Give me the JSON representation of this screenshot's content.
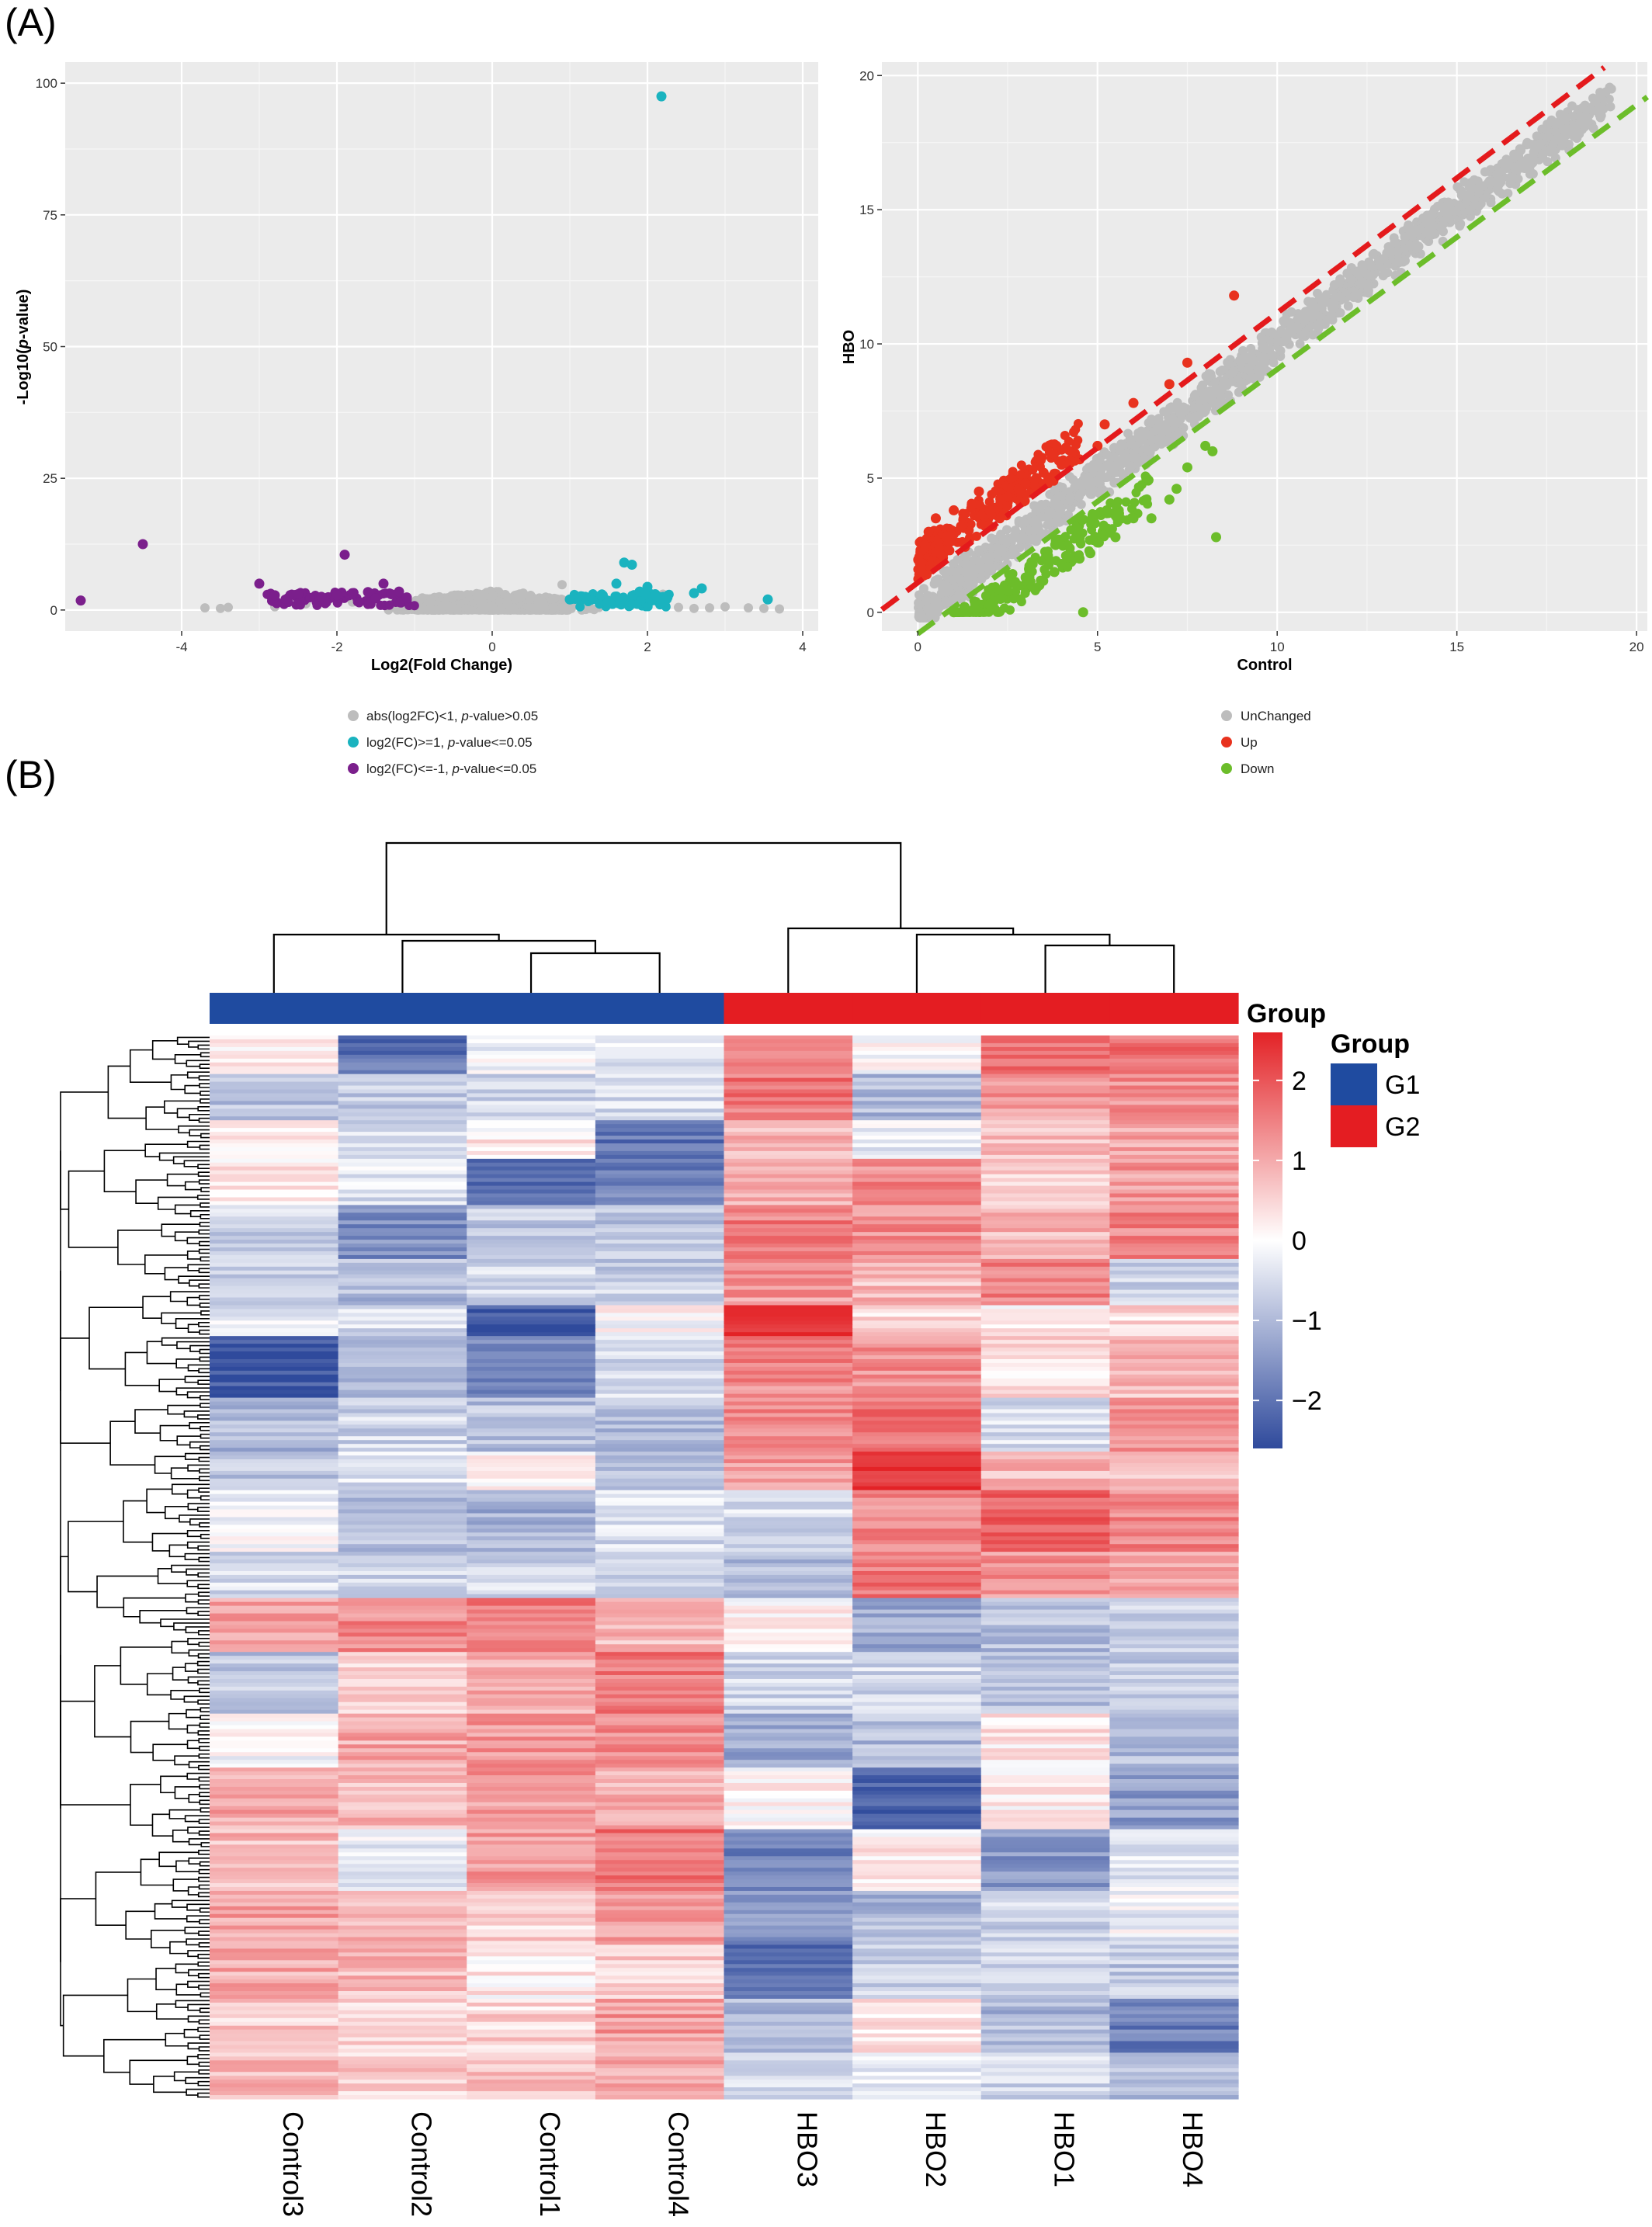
{
  "panel_labels": [
    "(A)",
    "(B)"
  ],
  "colors": {
    "panel_bg": "#ebebeb",
    "unchanged": "#bdbdbd",
    "volcano_up": "#1ab3bf",
    "volcano_down": "#7b1f8c",
    "scatter_up": "#e8321e",
    "scatter_down": "#6cbd2a",
    "line_up": "#e41a1c",
    "line_down": "#6cbd2a",
    "heat_low": "#2f4a9c",
    "heat_mid": "#ffffff",
    "heat_high": "#e32226",
    "group_g1": "#1f4ba0",
    "group_g2": "#e41d22"
  },
  "chart_data": [
    {
      "type": "scatter",
      "title": "",
      "xlabel": "Log2(Fold Change)",
      "ylabel": "-Log10(p-value)",
      "xlim": [
        -5.5,
        4.2
      ],
      "ylim": [
        -4,
        104
      ],
      "xticks": [
        -4,
        -2,
        0,
        2,
        4
      ],
      "xtick_labels": [
        "-4",
        "-2",
        "0",
        "2",
        "4"
      ],
      "yticks": [
        0,
        25,
        50,
        75,
        100
      ],
      "ytick_labels": [
        "0",
        "25",
        "50",
        "75",
        "100"
      ],
      "grid": true,
      "legend_position": "bottom",
      "legend": [
        {
          "label": "abs(log2FC)<1, p-value>0.05",
          "color": "#bdbdbd"
        },
        {
          "label": "log2(FC)>=1, p-value<=0.05",
          "color": "#1ab3bf"
        },
        {
          "label": "log2(FC)<=-1, p-value<=0.05",
          "color": "#7b1f8c"
        }
      ],
      "series": [
        {
          "name": "abs(log2FC)<1, p-value>0.05",
          "points": [
            [
              -3.7,
              0.4
            ],
            [
              -3.5,
              0.3
            ],
            [
              -3.4,
              0.5
            ],
            [
              -2.8,
              0.6
            ],
            [
              -2.4,
              1.2
            ],
            [
              -1.8,
              1.5
            ],
            [
              -1.2,
              1.8
            ],
            [
              -0.9,
              2.3
            ],
            [
              -0.6,
              1.6
            ],
            [
              -0.4,
              2.8
            ],
            [
              -0.2,
              3.1
            ],
            [
              0,
              2.5
            ],
            [
              0.2,
              2.4
            ],
            [
              0.4,
              3.2
            ],
            [
              0.6,
              1.8
            ],
            [
              0.8,
              2.2
            ],
            [
              0.9,
              4.8
            ],
            [
              1.2,
              0.9
            ],
            [
              2.2,
              3.0
            ],
            [
              2.4,
              0.5
            ],
            [
              2.6,
              0.3
            ],
            [
              2.8,
              0.4
            ],
            [
              3.0,
              0.6
            ],
            [
              3.3,
              0.4
            ],
            [
              3.5,
              0.3
            ],
            [
              3.7,
              0.2
            ]
          ]
        },
        {
          "name": "log2(FC)>=1, p-value<=0.05",
          "points": [
            [
              1.0,
              2.0
            ],
            [
              1.2,
              2.5
            ],
            [
              1.4,
              2.8
            ],
            [
              1.6,
              5.0
            ],
            [
              1.7,
              9.0
            ],
            [
              1.8,
              8.6
            ],
            [
              1.9,
              3.5
            ],
            [
              2.0,
              4.4
            ],
            [
              2.1,
              3.0
            ],
            [
              2.2,
              2.3
            ],
            [
              2.18,
              97.5
            ],
            [
              2.6,
              3.2
            ],
            [
              2.7,
              4.1
            ],
            [
              3.55,
              2.0
            ]
          ]
        },
        {
          "name": "log2(FC)<=-1, p-value<=0.05",
          "points": [
            [
              -5.3,
              1.8
            ],
            [
              -4.5,
              12.5
            ],
            [
              -3.0,
              5.0
            ],
            [
              -2.8,
              2.8
            ],
            [
              -2.5,
              3.0
            ],
            [
              -2.2,
              2.5
            ],
            [
              -2.0,
              2.8
            ],
            [
              -1.9,
              10.5
            ],
            [
              -1.8,
              3.2
            ],
            [
              -1.6,
              3.4
            ],
            [
              -1.5,
              2.2
            ],
            [
              -1.4,
              5.0
            ],
            [
              -1.3,
              3.0
            ],
            [
              -1.2,
              3.5
            ],
            [
              -1.1,
              2.4
            ]
          ]
        }
      ]
    },
    {
      "type": "scatter",
      "title": "",
      "xlabel": "Control",
      "ylabel": "HBO",
      "xlim": [
        -1,
        20.3
      ],
      "ylim": [
        -0.7,
        20.5
      ],
      "xticks": [
        0,
        5,
        10,
        15,
        20
      ],
      "xtick_labels": [
        "0",
        "5",
        "10",
        "15",
        "20"
      ],
      "yticks": [
        0,
        5,
        10,
        15,
        20
      ],
      "ytick_labels": [
        "0",
        "5",
        "10",
        "15",
        "20"
      ],
      "grid": true,
      "legend_position": "bottom",
      "legend": [
        {
          "label": "UnChanged",
          "color": "#bdbdbd"
        },
        {
          "label": "Up",
          "color": "#e8321e"
        },
        {
          "label": "Down",
          "color": "#6cbd2a"
        }
      ],
      "reference_lines": [
        {
          "name": "up",
          "from": [
            -1,
            0.1
          ],
          "to": [
            19.1,
            20.3
          ],
          "color": "#e41a1c",
          "dash": true
        },
        {
          "name": "down",
          "from": [
            0,
            -0.8
          ],
          "to": [
            20.3,
            19.2
          ],
          "color": "#6cbd2a",
          "dash": true
        }
      ],
      "series": [
        {
          "name": "UnChanged",
          "band": {
            "x_from": 0,
            "x_to": 19.3,
            "half_width": 0.9
          },
          "points": [
            [
              19.3,
              19.5
            ],
            [
              19.0,
              18.8
            ],
            [
              18.5,
              18.8
            ]
          ]
        },
        {
          "name": "Up",
          "points": [
            [
              0.1,
              1.5
            ],
            [
              0.2,
              2.5
            ],
            [
              0.3,
              3.0
            ],
            [
              0.5,
              3.5
            ],
            [
              0.8,
              2.8
            ],
            [
              1.0,
              3.8
            ],
            [
              1.2,
              3.2
            ],
            [
              1.5,
              4.0
            ],
            [
              1.7,
              4.5
            ],
            [
              2.0,
              3.8
            ],
            [
              2.3,
              4.2
            ],
            [
              2.5,
              4.3
            ],
            [
              2.8,
              4.6
            ],
            [
              3.0,
              4.8
            ],
            [
              3.3,
              5.0
            ],
            [
              3.5,
              5.2
            ],
            [
              4.0,
              5.5
            ],
            [
              4.5,
              5.7
            ],
            [
              5.0,
              6.2
            ],
            [
              5.2,
              7.0
            ],
            [
              6.0,
              7.8
            ],
            [
              7.0,
              8.5
            ],
            [
              7.5,
              9.3
            ],
            [
              8.8,
              11.8
            ]
          ]
        },
        {
          "name": "Down",
          "points": [
            [
              1.0,
              0.0
            ],
            [
              1.3,
              0.2
            ],
            [
              1.6,
              0.1
            ],
            [
              2.0,
              0.3
            ],
            [
              2.3,
              0.5
            ],
            [
              2.5,
              0.8
            ],
            [
              2.8,
              1.0
            ],
            [
              3.0,
              1.3
            ],
            [
              3.3,
              0.9
            ],
            [
              3.8,
              1.5
            ],
            [
              4.0,
              1.8
            ],
            [
              4.5,
              2.0
            ],
            [
              4.8,
              2.2
            ],
            [
              5.0,
              2.6
            ],
            [
              5.5,
              2.8
            ],
            [
              6.0,
              3.5
            ],
            [
              6.5,
              3.5
            ],
            [
              7.0,
              4.2
            ],
            [
              7.2,
              4.6
            ],
            [
              7.5,
              5.4
            ],
            [
              8.0,
              6.2
            ],
            [
              8.2,
              6.0
            ],
            [
              8.3,
              2.8
            ],
            [
              4.6,
              0.0
            ]
          ]
        }
      ]
    },
    {
      "type": "heatmap",
      "title": "",
      "columns": [
        "Control3",
        "Control2",
        "Control1",
        "Control4",
        "HBO3",
        "HBO2",
        "HBO1",
        "HBO4"
      ],
      "column_groups": [
        "G1",
        "G1",
        "G1",
        "G1",
        "G2",
        "G2",
        "G2",
        "G2"
      ],
      "group_annotation_label": "Group",
      "legend_title": "Group",
      "legend_groups": [
        {
          "label": "G1",
          "color": "#1f4ba0"
        },
        {
          "label": "G2",
          "color": "#e41d22"
        }
      ],
      "color_scale": {
        "min": -2.6,
        "max": 2.6,
        "ticks": [
          2,
          1,
          0,
          -1,
          -2
        ],
        "tick_labels": [
          "2",
          "1",
          "0",
          "−1",
          "−2"
        ]
      },
      "row_blocks": [
        {
          "rows": 10,
          "values": [
            0.3,
            -2.0,
            -0.2,
            -0.4,
            1.2,
            0.0,
            1.8,
            1.6
          ]
        },
        {
          "rows": 12,
          "values": [
            -0.9,
            -0.7,
            -0.6,
            -0.5,
            1.6,
            -1.0,
            1.2,
            1.3
          ]
        },
        {
          "rows": 10,
          "values": [
            0.1,
            -0.5,
            0.2,
            -2.0,
            0.8,
            -0.2,
            0.7,
            1.0
          ]
        },
        {
          "rows": 12,
          "values": [
            0.2,
            -0.4,
            -2.2,
            -1.8,
            1.0,
            1.4,
            0.6,
            1.2
          ]
        },
        {
          "rows": 14,
          "values": [
            -0.6,
            -1.6,
            -0.8,
            -0.9,
            1.5,
            1.3,
            0.9,
            1.4
          ]
        },
        {
          "rows": 12,
          "values": [
            -0.8,
            -1.0,
            -0.6,
            -0.7,
            1.2,
            0.8,
            1.5,
            -0.6
          ]
        },
        {
          "rows": 8,
          "values": [
            -0.4,
            -0.5,
            -2.4,
            0.0,
            2.3,
            0.5,
            0.2,
            0.4
          ]
        },
        {
          "rows": 16,
          "values": [
            -2.4,
            -1.0,
            -1.6,
            -0.6,
            1.4,
            1.3,
            0.4,
            0.8
          ]
        },
        {
          "rows": 14,
          "values": [
            -1.0,
            -0.6,
            -0.9,
            -1.0,
            1.3,
            1.6,
            -0.5,
            1.2
          ]
        },
        {
          "rows": 10,
          "values": [
            -0.8,
            -0.4,
            0.0,
            -0.8,
            1.2,
            2.4,
            0.8,
            0.6
          ]
        },
        {
          "rows": 16,
          "values": [
            -0.2,
            -0.9,
            -1.1,
            -0.5,
            -0.5,
            1.4,
            1.8,
            1.4
          ]
        },
        {
          "rows": 12,
          "values": [
            -0.5,
            -0.6,
            -0.6,
            -0.5,
            -0.9,
            1.6,
            1.3,
            1.2
          ]
        },
        {
          "rows": 14,
          "values": [
            1.2,
            1.4,
            1.6,
            0.8,
            0.2,
            -1.2,
            -0.9,
            -0.6
          ]
        },
        {
          "rows": 16,
          "values": [
            -0.8,
            0.6,
            1.0,
            1.6,
            -0.6,
            -0.6,
            -0.9,
            -0.8
          ]
        },
        {
          "rows": 14,
          "values": [
            -0.1,
            1.0,
            1.2,
            1.4,
            -1.2,
            -1.0,
            0.3,
            -1.0
          ]
        },
        {
          "rows": 16,
          "values": [
            1.0,
            0.8,
            1.2,
            1.0,
            0.1,
            -2.3,
            0.2,
            -1.4
          ]
        },
        {
          "rows": 16,
          "values": [
            0.8,
            -0.2,
            1.2,
            1.6,
            -1.8,
            0.2,
            -1.5,
            -0.3
          ]
        },
        {
          "rows": 14,
          "values": [
            1.1,
            0.9,
            0.5,
            1.1,
            -1.5,
            -1.0,
            -0.6,
            -0.2
          ]
        },
        {
          "rows": 14,
          "values": [
            1.0,
            0.8,
            0.2,
            0.6,
            -2.0,
            -0.6,
            -0.7,
            -0.8
          ]
        },
        {
          "rows": 14,
          "values": [
            0.6,
            0.4,
            0.5,
            1.2,
            -1.0,
            0.2,
            -1.0,
            -1.8
          ]
        },
        {
          "rows": 12,
          "values": [
            0.8,
            0.6,
            0.7,
            0.9,
            -0.5,
            -0.4,
            -0.6,
            -0.9
          ]
        }
      ]
    }
  ]
}
